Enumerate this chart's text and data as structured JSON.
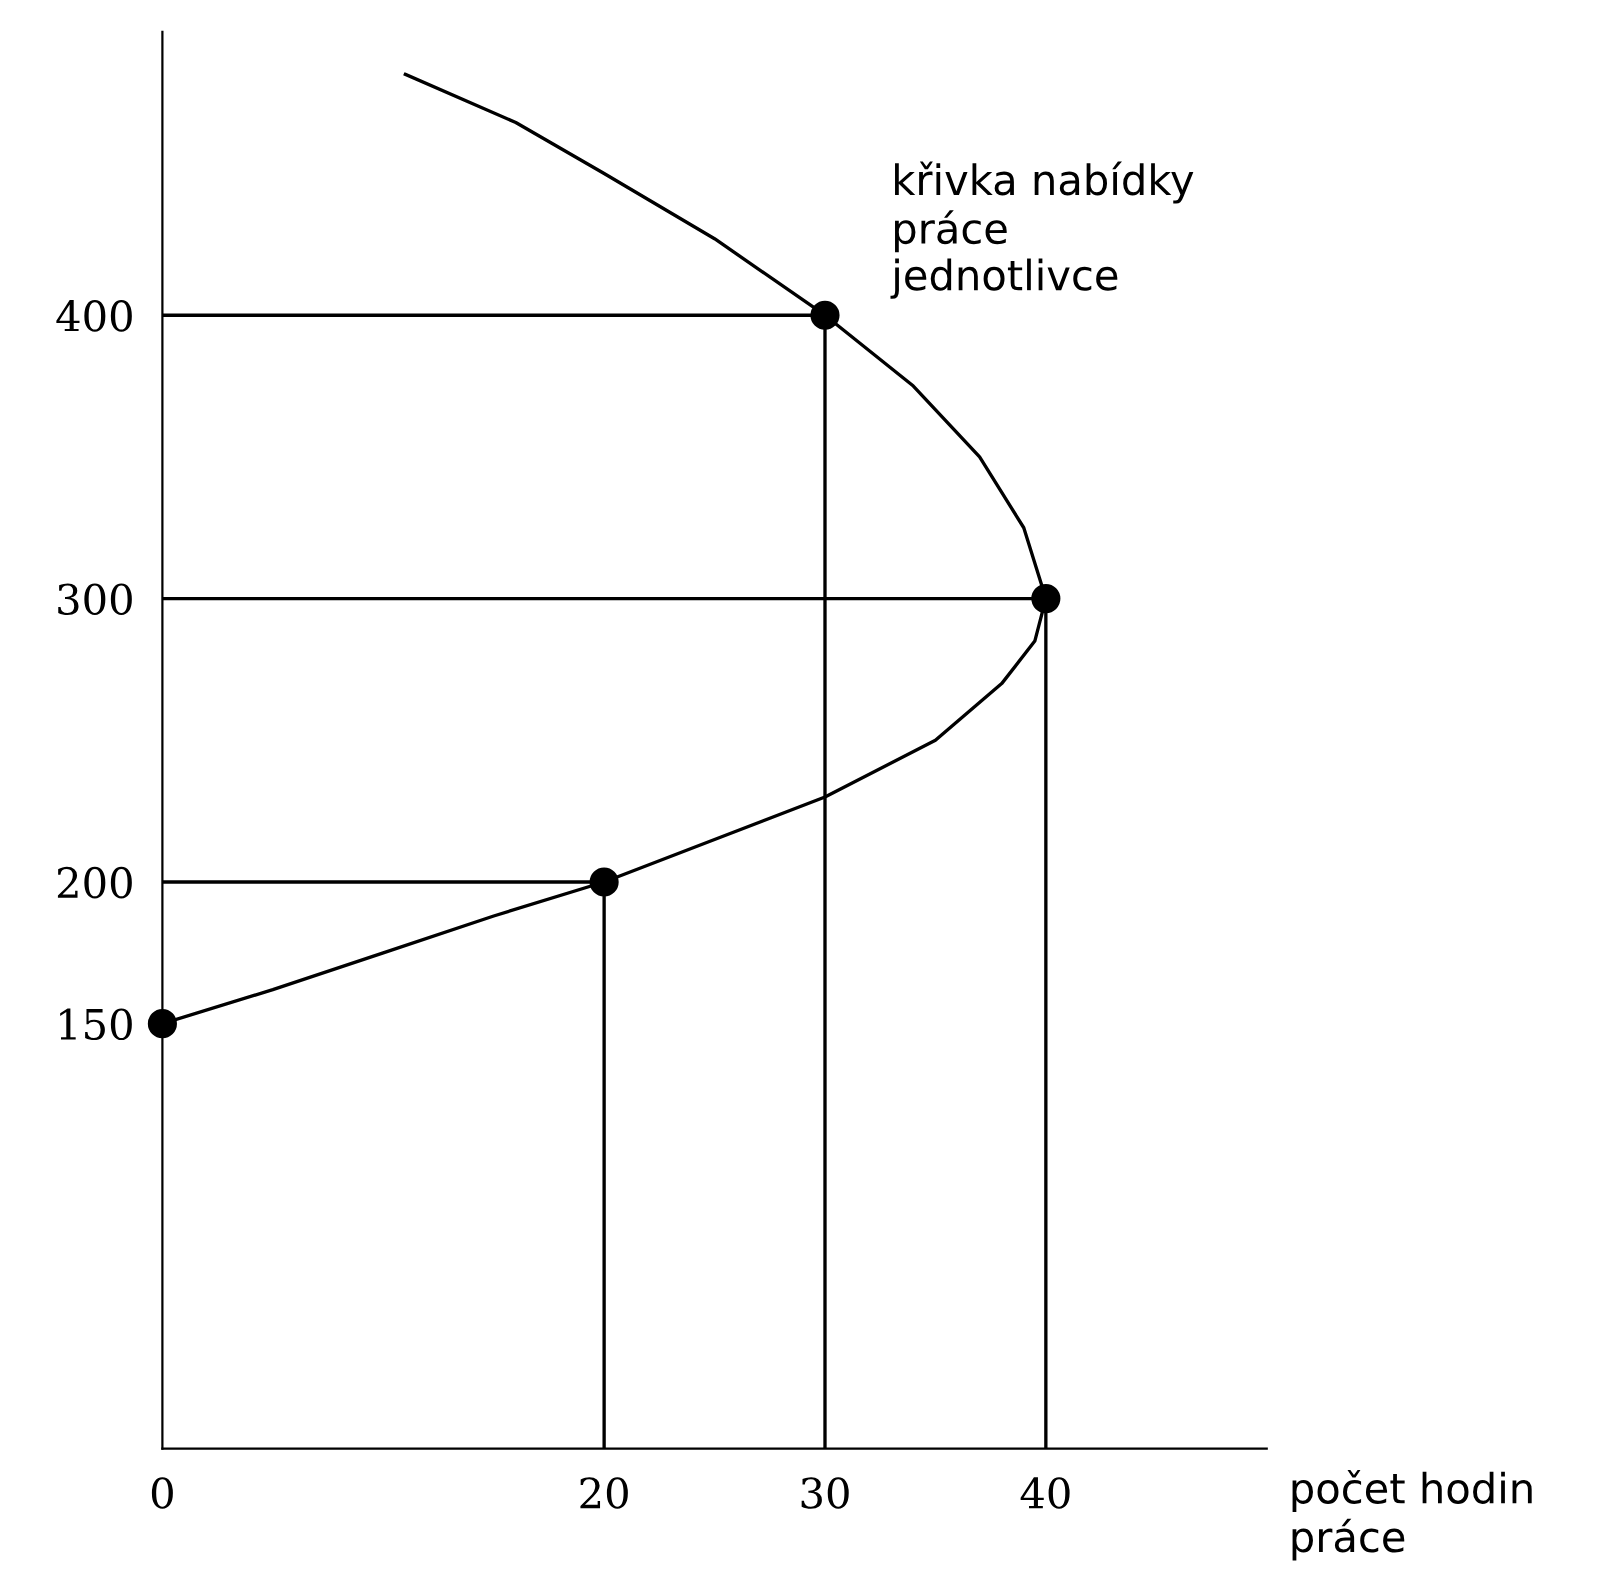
{
  "chart_data": {
    "type": "line",
    "xlabel": "počet hodin\npráce",
    "xlim": [
      0,
      50
    ],
    "ylim": [
      0,
      500
    ],
    "xticks": [
      0,
      20,
      30,
      40
    ],
    "yticks": [
      150,
      200,
      300,
      400
    ],
    "grid": false,
    "legend": false,
    "annotations": [
      "křivka nabídky\npráce\njednotlivce"
    ],
    "series": [
      {
        "color": "#000000",
        "x": [
          11,
          16,
          20,
          25,
          30,
          34,
          37,
          39,
          40,
          39.5,
          38,
          35,
          30,
          25,
          20,
          15,
          10,
          5,
          0
        ],
        "values": [
          485,
          468,
          450,
          427,
          400,
          375,
          350,
          325,
          300,
          285,
          270,
          250,
          230,
          215,
          200,
          188,
          175,
          162,
          150
        ]
      },
      {
        "color": "#000000",
        "x": [
          0,
          20,
          20
        ],
        "values": [
          200,
          200,
          0
        ]
      },
      {
        "color": "#000000",
        "x": [
          0,
          40,
          40
        ],
        "values": [
          300,
          300,
          0
        ]
      },
      {
        "color": "#000000",
        "x": [
          0,
          30,
          30
        ],
        "values": [
          400,
          400,
          0
        ]
      },
      {
        "type": "scatter",
        "color": "#000000",
        "marker": "circle",
        "x": [
          0,
          20,
          40,
          30
        ],
        "values": [
          150,
          200,
          300,
          400
        ]
      }
    ]
  }
}
